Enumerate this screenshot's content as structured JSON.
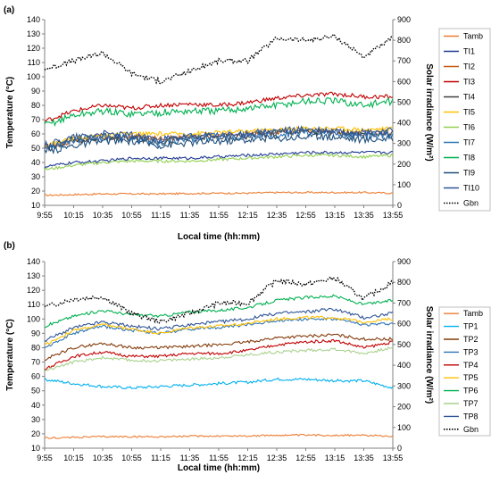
{
  "x_ticks": [
    "9:55",
    "10:15",
    "10:35",
    "10:55",
    "11:15",
    "11:35",
    "11:55",
    "12:15",
    "12:35",
    "12:55",
    "13:15",
    "13:35",
    "13:55"
  ],
  "chart_data": [
    {
      "panel_label": "(a)",
      "type": "line",
      "xlabel": "Local time (hh:mm)",
      "ylabel": "Temperature (°C)",
      "y2label": "Solar irradiance (W/m²)",
      "x": [
        "9:55",
        "10:15",
        "10:35",
        "10:55",
        "11:15",
        "11:35",
        "11:55",
        "12:15",
        "12:35",
        "12:55",
        "13:15",
        "13:35",
        "13:55"
      ],
      "ylim": [
        10,
        140
      ],
      "y_ticks": [
        10,
        20,
        30,
        40,
        50,
        60,
        70,
        80,
        90,
        100,
        110,
        120,
        130,
        140
      ],
      "y2lim": [
        0,
        900
      ],
      "y2_ticks": [
        0,
        100,
        200,
        300,
        400,
        500,
        600,
        700,
        800,
        900
      ],
      "grid": false,
      "legend_position": "right",
      "series": [
        {
          "name": "Tamb",
          "color": "#ED7D31",
          "axis": "left",
          "style": "solid",
          "noise": 0.6,
          "values": [
            17,
            17.5,
            18,
            18,
            18,
            18.3,
            18.5,
            18.5,
            19,
            19,
            19,
            19,
            18.5
          ]
        },
        {
          "name": "TI1",
          "color": "#1F3A93",
          "axis": "left",
          "style": "solid",
          "noise": 1.0,
          "values": [
            37,
            40,
            41,
            43,
            43,
            43,
            44,
            45,
            46,
            47,
            47,
            47,
            47
          ]
        },
        {
          "name": "TI2",
          "color": "#C55A11",
          "axis": "left",
          "style": "solid",
          "noise": 1.5,
          "values": [
            50,
            55,
            57,
            58,
            57,
            58,
            59,
            60,
            61,
            62,
            61,
            60,
            61
          ]
        },
        {
          "name": "TI3",
          "color": "#C00000",
          "axis": "left",
          "style": "solid",
          "noise": 1.5,
          "values": [
            69,
            76,
            80,
            78,
            80,
            81,
            80,
            82,
            85,
            87,
            88,
            86,
            86
          ]
        },
        {
          "name": "TI4",
          "color": "#404040",
          "axis": "left",
          "style": "solid",
          "noise": 2.5,
          "values": [
            50,
            56,
            58,
            57,
            55,
            57,
            58,
            59,
            61,
            62,
            61,
            60,
            61
          ]
        },
        {
          "name": "TI5",
          "color": "#FFC000",
          "axis": "left",
          "style": "solid",
          "noise": 1.5,
          "values": [
            52,
            57,
            59,
            60,
            60,
            60,
            61,
            62,
            63,
            64,
            64,
            63,
            64
          ]
        },
        {
          "name": "TI6",
          "color": "#92D050",
          "axis": "left",
          "style": "solid",
          "noise": 1.0,
          "values": [
            35,
            38,
            40,
            41,
            41,
            41,
            42,
            43,
            44,
            45,
            45,
            44,
            45
          ]
        },
        {
          "name": "TI7",
          "color": "#2E75B6",
          "axis": "left",
          "style": "solid",
          "noise": 3.0,
          "values": [
            50,
            56,
            58,
            57,
            54,
            57,
            58,
            59,
            60,
            61,
            60,
            59,
            60
          ]
        },
        {
          "name": "TI8",
          "color": "#00B050",
          "axis": "left",
          "style": "solid",
          "noise": 2.5,
          "values": [
            66,
            73,
            76,
            74,
            75,
            76,
            76,
            78,
            80,
            83,
            83,
            80,
            83
          ]
        },
        {
          "name": "TI9",
          "color": "#1F4E79",
          "axis": "left",
          "style": "solid",
          "noise": 2.5,
          "values": [
            47,
            52,
            55,
            55,
            52,
            54,
            55,
            56,
            57,
            58,
            58,
            56,
            57
          ]
        },
        {
          "name": "TI10",
          "color": "#2F5597",
          "axis": "left",
          "style": "solid",
          "noise": 2.5,
          "values": [
            52,
            58,
            60,
            59,
            56,
            58,
            59,
            60,
            62,
            63,
            62,
            61,
            62
          ]
        },
        {
          "name": "Gbn",
          "color": "#000000",
          "axis": "right",
          "style": "dotted",
          "noise": 12,
          "values": [
            660,
            700,
            740,
            640,
            600,
            650,
            700,
            700,
            810,
            800,
            820,
            720,
            810
          ]
        }
      ]
    },
    {
      "panel_label": "(b)",
      "type": "line",
      "xlabel": "Local time (hh:mm)",
      "ylabel": "Temperature (°C)",
      "y2label": "Solar irradiance (W/m²)",
      "x": [
        "9:55",
        "10:15",
        "10:35",
        "10:55",
        "11:15",
        "11:35",
        "11:55",
        "12:15",
        "12:35",
        "12:55",
        "13:15",
        "13:35",
        "13:55"
      ],
      "ylim": [
        10,
        140
      ],
      "y_ticks": [
        10,
        20,
        30,
        40,
        50,
        60,
        70,
        80,
        90,
        100,
        110,
        120,
        130,
        140
      ],
      "y2lim": [
        0,
        900
      ],
      "y2_ticks": [
        0,
        100,
        200,
        300,
        400,
        500,
        600,
        700,
        800,
        900
      ],
      "grid": false,
      "legend_position": "right",
      "series": [
        {
          "name": "Tamb",
          "color": "#ED7D31",
          "axis": "left",
          "style": "solid",
          "noise": 0.6,
          "values": [
            17,
            17.5,
            18,
            18,
            18,
            18.3,
            18.5,
            18.5,
            19,
            19,
            19,
            19,
            18.5
          ]
        },
        {
          "name": "TP1",
          "color": "#00B0F0",
          "axis": "left",
          "style": "solid",
          "noise": 1.0,
          "values": [
            58,
            55,
            53,
            52,
            53,
            54,
            55,
            56,
            58,
            58,
            57,
            57,
            52
          ]
        },
        {
          "name": "TP2",
          "color": "#843C0C",
          "axis": "left",
          "style": "solid",
          "noise": 1.0,
          "values": [
            72,
            80,
            83,
            80,
            80,
            81,
            82,
            84,
            87,
            88,
            89,
            86,
            86
          ]
        },
        {
          "name": "TP3",
          "color": "#2E75B6",
          "axis": "left",
          "style": "solid",
          "noise": 1.0,
          "values": [
            80,
            90,
            95,
            92,
            90,
            93,
            94,
            96,
            99,
            100,
            100,
            96,
            97
          ]
        },
        {
          "name": "TP4",
          "color": "#C00000",
          "axis": "left",
          "style": "solid",
          "noise": 1.0,
          "values": [
            65,
            74,
            77,
            74,
            74,
            76,
            76,
            78,
            82,
            84,
            85,
            80,
            84
          ]
        },
        {
          "name": "TP5",
          "color": "#FFC000",
          "axis": "left",
          "style": "solid",
          "noise": 1.0,
          "values": [
            82,
            92,
            96,
            93,
            90,
            94,
            95,
            97,
            100,
            101,
            101,
            98,
            100
          ]
        },
        {
          "name": "TP6",
          "color": "#00B050",
          "axis": "left",
          "style": "solid",
          "noise": 1.0,
          "values": [
            95,
            102,
            106,
            103,
            102,
            105,
            106,
            108,
            113,
            115,
            116,
            110,
            113
          ]
        },
        {
          "name": "TP7",
          "color": "#A9D18E",
          "axis": "left",
          "style": "solid",
          "noise": 1.0,
          "values": [
            64,
            70,
            73,
            71,
            71,
            72,
            73,
            75,
            77,
            78,
            79,
            76,
            80
          ]
        },
        {
          "name": "TP8",
          "color": "#2F5597",
          "axis": "left",
          "style": "solid",
          "noise": 1.2,
          "values": [
            85,
            94,
            98,
            95,
            93,
            96,
            98,
            100,
            104,
            105,
            107,
            101,
            104
          ]
        },
        {
          "name": "Gbn",
          "color": "#000000",
          "axis": "right",
          "style": "dotted",
          "noise": 12,
          "values": [
            680,
            720,
            730,
            650,
            610,
            650,
            700,
            700,
            810,
            790,
            820,
            720,
            800
          ]
        }
      ]
    }
  ]
}
